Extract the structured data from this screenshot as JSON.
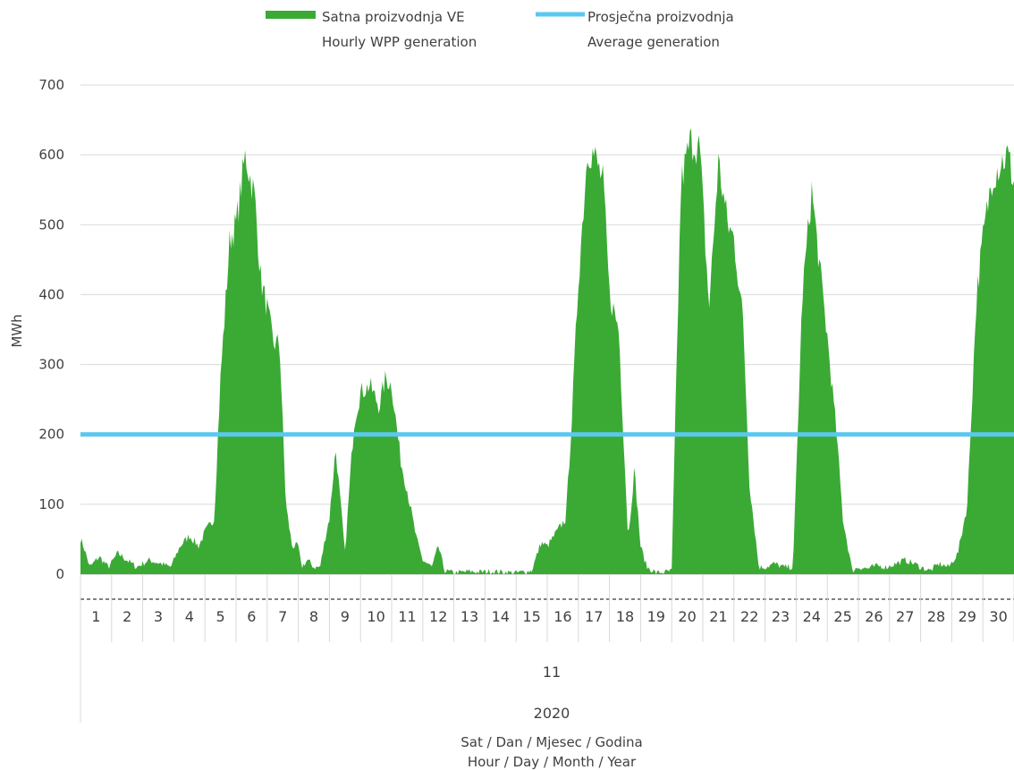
{
  "chart_data": {
    "type": "area",
    "ylabel": "MWh",
    "ylim": [
      0,
      700
    ],
    "y_ticks": [
      0,
      100,
      200,
      300,
      400,
      500,
      600,
      700
    ],
    "grid": true,
    "legend_position": "top",
    "legend": [
      {
        "key": "hourly",
        "line1": "Satna proizvodnja VE",
        "line2": "Hourly WPP generation"
      },
      {
        "key": "average",
        "line1": "Prosječna proizvodnja",
        "line2": "Average generation"
      }
    ],
    "x_hierarchy": {
      "days": [
        "1",
        "2",
        "3",
        "4",
        "5",
        "6",
        "7",
        "8",
        "9",
        "10",
        "11",
        "12",
        "13",
        "14",
        "15",
        "16",
        "17",
        "18",
        "19",
        "20",
        "21",
        "22",
        "23",
        "24",
        "25",
        "26",
        "27",
        "28",
        "29",
        "30"
      ],
      "month": "11",
      "year": "2020"
    },
    "xlabel_line1": "Sat / Dan / Mjesec / Godina",
    "xlabel_line2": "Hour / Day / Month / Year",
    "series": [
      {
        "name": "Satna proizvodnja VE / Hourly WPP generation",
        "type": "area",
        "color": "#3aaa35",
        "profile_x_days": [
          0,
          0.1,
          0.3,
          0.6,
          0.9,
          1.2,
          1.5,
          1.8,
          2.2,
          2.6,
          2.9,
          3.2,
          3.5,
          3.8,
          4.0,
          4.3,
          4.5,
          4.8,
          5.0,
          5.3,
          5.6,
          5.8,
          6.0,
          6.2,
          6.4,
          6.6,
          6.8,
          7.0,
          7.1,
          7.3,
          7.5,
          7.7,
          7.9,
          8.0,
          8.2,
          8.5,
          8.7,
          8.8,
          9.0,
          9.3,
          9.6,
          9.8,
          10.0,
          10.3,
          10.5,
          10.8,
          11.0,
          11.3,
          11.5,
          11.7,
          12.0,
          12.3,
          12.5,
          12.8,
          13.2,
          13.6,
          14.0,
          14.5,
          14.8,
          15.0,
          15.3,
          15.6,
          15.8,
          16.0,
          16.3,
          16.5,
          16.8,
          17.0,
          17.3,
          17.6,
          17.8,
          18.0,
          18.2,
          18.5,
          18.8,
          19.0,
          19.3,
          19.6,
          19.9,
          20.2,
          20.5,
          20.8,
          21.0,
          21.3,
          21.5,
          21.8,
          22.0,
          22.3,
          22.6,
          22.9,
          23.2,
          23.5,
          23.8,
          24.0,
          24.3,
          24.5,
          24.8,
          25.0,
          25.3,
          25.6,
          25.9,
          26.2,
          26.5,
          26.8,
          27.0,
          27.3,
          27.6,
          27.9,
          28.2,
          28.5,
          28.8,
          29.0,
          29.3,
          29.6,
          29.8,
          30.0
        ],
        "profile_values": [
          50,
          40,
          10,
          25,
          10,
          30,
          20,
          10,
          20,
          15,
          10,
          40,
          55,
          40,
          60,
          80,
          280,
          480,
          500,
          600,
          540,
          420,
          380,
          330,
          330,
          100,
          40,
          40,
          10,
          20,
          10,
          10,
          60,
          80,
          180,
          30,
          160,
          220,
          260,
          270,
          240,
          280,
          270,
          160,
          120,
          50,
          20,
          10,
          40,
          5,
          2,
          3,
          4,
          3,
          4,
          3,
          2,
          5,
          45,
          40,
          60,
          80,
          230,
          420,
          610,
          600,
          560,
          400,
          350,
          50,
          150,
          40,
          10,
          2,
          3,
          5,
          560,
          620,
          610,
          380,
          590,
          500,
          480,
          360,
          130,
          10,
          10,
          15,
          10,
          10,
          400,
          550,
          420,
          340,
          200,
          80,
          5,
          10,
          8,
          12,
          10,
          15,
          20,
          15,
          10,
          5,
          15,
          10,
          30,
          100,
          400,
          480,
          570,
          590,
          600,
          560
        ]
      },
      {
        "name": "Prosječna proizvodnja / Average generation",
        "type": "line",
        "color": "#5bc8ef",
        "value": 200
      }
    ]
  }
}
